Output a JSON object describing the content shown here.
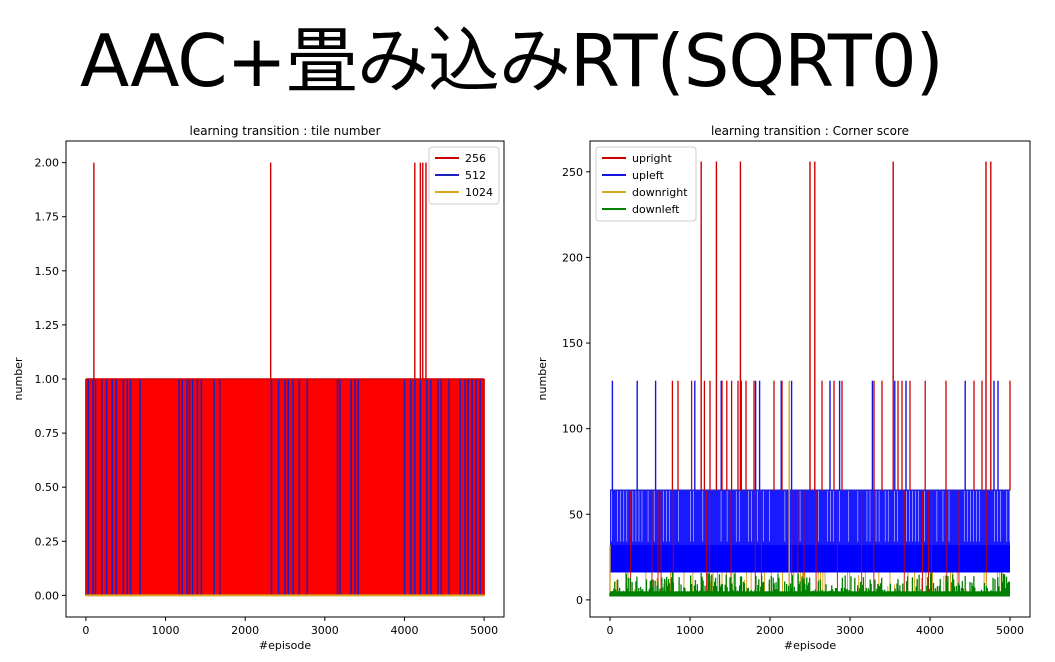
{
  "slide_title": "AAC+畳み込みRT(SQRT0)",
  "chart_data": [
    {
      "type": "line",
      "title": "learning transition : tile number",
      "xlabel": "#episode",
      "ylabel": "number",
      "xlim": [
        -250,
        5250
      ],
      "ylim": [
        -0.1,
        2.1
      ],
      "xticks": [
        0,
        1000,
        2000,
        3000,
        4000,
        5000
      ],
      "yticks": [
        "0.00",
        "0.25",
        "0.50",
        "0.75",
        "1.00",
        "1.25",
        "1.50",
        "1.75",
        "2.00"
      ],
      "legend_position": "upper right",
      "series": [
        {
          "name": "256",
          "color": "#cc0000",
          "spikes_to_2": [
            100,
            2320,
            4130,
            4200,
            4230,
            4270
          ],
          "filled_region": [
            [
              0,
              1
            ],
            [
              5000,
              1
            ]
          ]
        },
        {
          "name": "512",
          "color": "#1f1fbf",
          "spikes_to_1": [
            30,
            90,
            120,
            200,
            260,
            330,
            380,
            470,
            520,
            560,
            680,
            1170,
            1210,
            1270,
            1300,
            1340,
            1400,
            1450,
            1610,
            1680,
            2330,
            2420,
            2500,
            2540,
            2600,
            2680,
            2780,
            3160,
            3190,
            3330,
            3380,
            3420,
            4000,
            4080,
            4130,
            4200,
            4280,
            4330,
            4420,
            4460,
            4560,
            4700,
            4760,
            4800,
            4850,
            4900,
            4950
          ]
        },
        {
          "name": "1024",
          "color": "#daa520",
          "values_constant": 0
        }
      ]
    },
    {
      "type": "line",
      "title": "learning transition : Corner score",
      "xlabel": "#episode",
      "ylabel": "number",
      "xlim": [
        -250,
        5250
      ],
      "ylim": [
        -10,
        268
      ],
      "xticks": [
        0,
        1000,
        2000,
        3000,
        4000,
        5000
      ],
      "yticks": [
        0,
        50,
        100,
        150,
        200,
        250
      ],
      "legend_position": "upper left",
      "series": [
        {
          "name": "upright",
          "color": "#cc0000",
          "spikes_to_256": [
            1140,
            1330,
            1630,
            2500,
            2560,
            3540,
            4700,
            4760
          ],
          "spikes_to_128": [
            780,
            850,
            1020,
            1180,
            1250,
            1400,
            1460,
            1520,
            1600,
            1700,
            1800,
            2050,
            2150,
            2650,
            2800,
            2900,
            3300,
            3400,
            3600,
            3650,
            3750,
            3940,
            4200,
            4550,
            4650,
            5000
          ],
          "baseline": 64
        },
        {
          "name": "upleft",
          "color": "#1414e0",
          "spikes_to_128": [
            30,
            340,
            570,
            1060,
            1390,
            1640,
            1820,
            1870,
            2140,
            2270,
            2750,
            2870,
            3280,
            3560,
            3700,
            4440,
            4800,
            4850
          ],
          "band": [
            16,
            64
          ]
        },
        {
          "name": "downright",
          "color": "#daa520",
          "spikes_to_128": [
            2240
          ],
          "band": [
            2,
            32
          ]
        },
        {
          "name": "downleft",
          "color": "#008000",
          "band": [
            2,
            16
          ]
        }
      ]
    }
  ]
}
